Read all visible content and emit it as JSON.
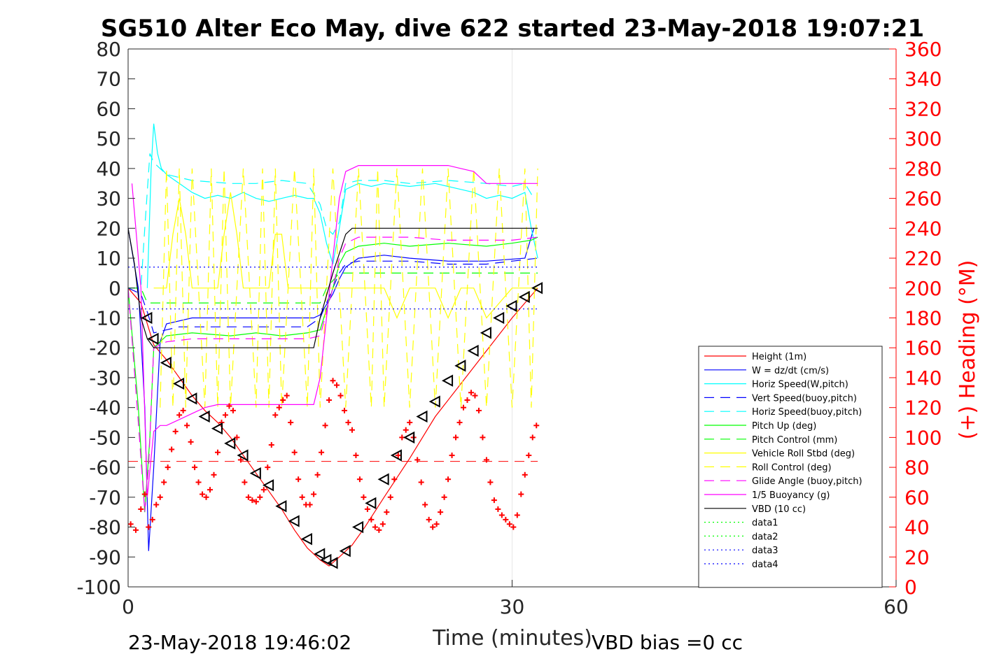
{
  "chart_data": {
    "type": "line",
    "title": "SG510 Alter Eco May, dive 622 started 23-May-2018 19:07:21",
    "xlabel": "Time (minutes)",
    "ylabel_right": "(+) Heading (°M)",
    "xlim": [
      0,
      60
    ],
    "ylim_left": [
      -100,
      80
    ],
    "ylim_right": [
      0,
      360
    ],
    "x_ticks": [
      "0",
      "30",
      "60"
    ],
    "y_ticks_left": [
      "80",
      "70",
      "60",
      "50",
      "40",
      "30",
      "20",
      "10",
      "0",
      "-10",
      "-20",
      "-30",
      "-40",
      "-50",
      "-60",
      "-70",
      "-80",
      "-90",
      "-100"
    ],
    "y_ticks_right": [
      "360",
      "340",
      "320",
      "300",
      "280",
      "260",
      "240",
      "220",
      "200",
      "180",
      "160",
      "140",
      "120",
      "100",
      "80",
      "60",
      "40",
      "20",
      "0"
    ],
    "grid": "x-only",
    "legend_location": "bottom-right",
    "footer_left": "23-May-2018 19:46:02",
    "footer_right": "VBD bias =0 cc",
    "colors": {
      "height": "#ff0000",
      "w": "#0000ff",
      "horiz": "#00ffff",
      "pitch": "#00ff00",
      "roll": "#ffff00",
      "glide": "#ff00ff",
      "buoy": "#ff00ff",
      "vbd": "#000000",
      "heading": "#ff0000",
      "axis": "#262626"
    },
    "series": [
      {
        "name": "Height (1m)",
        "style": "solid",
        "color": "#ff0000",
        "x": [
          0,
          1,
          1.5,
          2,
          3,
          4,
          5,
          6,
          7,
          8,
          9,
          10,
          11,
          12,
          13,
          14,
          15,
          15.7,
          16.5,
          17.5,
          18.5,
          20,
          22,
          24,
          26,
          28,
          30,
          31,
          32
        ],
        "values": [
          0,
          -5,
          -12,
          -19,
          -24,
          -30,
          -36,
          -41,
          -45,
          -50,
          -56,
          -62,
          -68,
          -74,
          -81,
          -87,
          -91,
          -93,
          -90,
          -86,
          -80,
          -70,
          -57,
          -43,
          -32,
          -21,
          -10,
          -5,
          0
        ]
      },
      {
        "name": "W = dz/dt (cm/s)",
        "style": "solid",
        "color": "#0000ff",
        "x": [
          0,
          0.8,
          1.3,
          1.6,
          2,
          2.5,
          3,
          5,
          8,
          11,
          13,
          14.5,
          15,
          16,
          16.5,
          17,
          18,
          20,
          22,
          25,
          28,
          31,
          31.7
        ],
        "values": [
          20,
          0,
          -40,
          -88,
          -60,
          -18,
          -12,
          -10,
          -10,
          -10,
          -10,
          -10,
          -9,
          -2,
          3,
          7,
          10,
          11,
          10,
          9,
          9,
          10,
          20
        ]
      },
      {
        "name": "Horiz Speed(W,pitch)",
        "style": "solid",
        "color": "#00ffff",
        "x": [
          1.5,
          1.8,
          2,
          2.3,
          2.6,
          3,
          4,
          5,
          6,
          7,
          8,
          9,
          10,
          11,
          12,
          13,
          14,
          14.5,
          15,
          15.5,
          16,
          16.5,
          17,
          18,
          19,
          20,
          22,
          24,
          26,
          27,
          28,
          29,
          30,
          31,
          31.5,
          32
        ],
        "values": [
          0,
          40,
          55,
          45,
          40,
          38,
          35,
          32,
          30,
          31,
          30,
          32,
          30,
          29,
          30,
          31,
          30,
          30,
          25,
          15,
          8,
          20,
          33,
          35,
          34,
          35,
          34,
          35,
          33,
          32,
          30,
          31,
          30,
          32,
          20,
          10
        ]
      },
      {
        "name": "Vert Speed(buoy,pitch)",
        "style": "dashed",
        "color": "#0000ff",
        "x": [
          0,
          1,
          1.5,
          2,
          3,
          4,
          6,
          8,
          10,
          12,
          14,
          15,
          16,
          16.5,
          17,
          18,
          20,
          22,
          25,
          28,
          30,
          32
        ],
        "values": [
          0,
          -2,
          -8,
          -15,
          -14,
          -13,
          -13,
          -13,
          -13,
          -13,
          -13,
          -10,
          0,
          5,
          8,
          9,
          9,
          9,
          8,
          8,
          9,
          10
        ]
      },
      {
        "name": "Horiz Speed(buoy,pitch)",
        "style": "dashed",
        "color": "#00ffff",
        "x": [
          0,
          1,
          1.3,
          1.7,
          2,
          2.5,
          3,
          5,
          8,
          10,
          12,
          14,
          15,
          15.5,
          16,
          16.5,
          17,
          18,
          20,
          22,
          25,
          28,
          30,
          31,
          31.7
        ],
        "values": [
          0,
          0,
          20,
          45,
          42,
          40,
          38,
          36,
          35,
          35,
          36,
          35,
          28,
          20,
          18,
          22,
          35,
          36,
          36,
          35,
          36,
          35,
          34,
          35,
          30
        ]
      },
      {
        "name": "Pitch Up (deg)",
        "style": "solid",
        "color": "#00ff00",
        "x": [
          0,
          0.8,
          1.3,
          1.7,
          2,
          3,
          5,
          8,
          10,
          12,
          14,
          15,
          16,
          16.5,
          17,
          18,
          20,
          22,
          25,
          28,
          30,
          31.5,
          32
        ],
        "values": [
          0,
          -40,
          -75,
          -50,
          -20,
          -16,
          -15,
          -16,
          -15,
          -16,
          -15,
          -14,
          0,
          8,
          12,
          14,
          15,
          14,
          15,
          14,
          15,
          16,
          17
        ]
      },
      {
        "name": "Pitch Control (mm)",
        "style": "dashed",
        "color": "#00ff00",
        "x": [
          0,
          1,
          1.5,
          2,
          5,
          10,
          14.5,
          15,
          15.5,
          16.5,
          17,
          20,
          25,
          30,
          32
        ],
        "values": [
          0,
          0,
          -5,
          -5,
          -5,
          -5,
          -5,
          -5,
          0,
          5,
          5,
          5,
          5,
          5,
          5
        ]
      },
      {
        "name": "Vehicle Roll Stbd (deg)",
        "style": "solid",
        "color": "#ffff00",
        "x": [
          2,
          3,
          3.5,
          4,
          4.5,
          5,
          6,
          7,
          7.5,
          8,
          8.5,
          9,
          10,
          11,
          11.5,
          12,
          12.5,
          13,
          14,
          15,
          16,
          18,
          20,
          21,
          22,
          24,
          25,
          26,
          27,
          28,
          30,
          31,
          32
        ],
        "values": [
          0,
          0,
          18,
          30,
          18,
          0,
          0,
          0,
          18,
          32,
          18,
          0,
          0,
          0,
          18,
          18,
          0,
          0,
          0,
          0,
          0,
          0,
          0,
          -10,
          0,
          0,
          -10,
          0,
          0,
          -10,
          0,
          0,
          0
        ]
      },
      {
        "name": "Roll Control (deg)",
        "style": "dashed",
        "color": "#ffff00",
        "x": [
          2.5,
          3,
          3.5,
          4,
          4.5,
          5,
          6,
          6.5,
          7,
          7.5,
          8,
          9,
          10,
          10.5,
          11,
          11.5,
          12,
          13,
          14,
          14.5,
          15,
          16,
          17,
          18,
          19,
          19.5,
          20,
          21,
          22,
          23,
          24,
          25,
          26,
          27,
          28,
          29,
          30,
          31,
          31.5,
          32
        ],
        "values": [
          -40,
          40,
          -40,
          40,
          -40,
          40,
          -40,
          40,
          -40,
          40,
          -40,
          40,
          -40,
          40,
          -40,
          40,
          -40,
          40,
          -40,
          40,
          -40,
          40,
          -40,
          40,
          -40,
          40,
          -40,
          40,
          -40,
          40,
          -40,
          40,
          -40,
          40,
          -40,
          40,
          -40,
          40,
          -40,
          40
        ]
      },
      {
        "name": "Glide Angle (buoy,pitch)",
        "style": "dashed",
        "color": "#ff00ff",
        "x": [
          0,
          0.8,
          1.3,
          1.6,
          2,
          3,
          5,
          8,
          10,
          12,
          14,
          15,
          16,
          16.5,
          17,
          18,
          20,
          22,
          25,
          28,
          30,
          32
        ],
        "values": [
          0,
          -45,
          -75,
          -60,
          -20,
          -18,
          -17,
          -17,
          -17,
          -17,
          -17,
          -16,
          0,
          10,
          15,
          17,
          17,
          17,
          16,
          16,
          16,
          17
        ]
      },
      {
        "name": "1/5 Buoyancy (g)",
        "style": "solid",
        "color": "#ff00ff",
        "x": [
          0.3,
          1,
          1.5,
          2,
          2.5,
          3,
          4,
          5,
          6,
          7,
          8,
          10,
          12,
          14,
          14.5,
          15,
          15.5,
          16,
          16.5,
          17,
          18,
          20,
          22,
          24,
          25,
          26,
          27,
          28,
          30,
          32
        ],
        "values": [
          35,
          0,
          -70,
          -48,
          -46,
          -46,
          -44,
          -42,
          -40,
          -39,
          -39,
          -39,
          -39,
          -39,
          -39,
          -30,
          -10,
          10,
          30,
          39,
          41,
          41,
          41,
          41,
          41,
          40,
          39,
          35,
          35,
          35
        ]
      },
      {
        "name": "VBD (10 cc)",
        "style": "solid",
        "color": "#000000",
        "x": [
          0,
          0.5,
          1,
          1.5,
          2,
          3,
          6,
          10,
          14,
          14.5,
          15,
          16,
          17,
          17.5,
          18,
          22,
          26,
          30,
          31.5,
          32
        ],
        "values": [
          20,
          8,
          -10,
          -17,
          -20,
          -20,
          -20,
          -20,
          -20,
          -20,
          -10,
          5,
          18,
          20,
          20,
          20,
          20,
          20,
          20,
          20
        ]
      },
      {
        "name": "data1",
        "style": "dotted",
        "color": "#00ff00",
        "x": [],
        "values": []
      },
      {
        "name": "data2",
        "style": "dotted",
        "color": "#00ff00",
        "x": [],
        "values": []
      },
      {
        "name": "data3",
        "style": "dotted",
        "color": "#0000ff",
        "x": [
          0,
          32
        ],
        "values": [
          7,
          7
        ]
      },
      {
        "name": "data4",
        "style": "dotted",
        "color": "#0000ff",
        "x": [
          0,
          32
        ],
        "values": [
          -7,
          -7
        ]
      }
    ],
    "reference_line": {
      "color": "#ff0000",
      "style": "dashed",
      "x": [
        0,
        32
      ],
      "value": -58
    },
    "heading_points": {
      "axis": "right",
      "marker": "+",
      "color": "#ff0000",
      "x": [
        0.2,
        0.6,
        1,
        1.3,
        1.6,
        1.9,
        2.2,
        2.5,
        2.8,
        3.1,
        3.4,
        3.7,
        4,
        4.3,
        4.6,
        4.9,
        5.2,
        5.5,
        5.8,
        6.1,
        6.4,
        6.7,
        7,
        7.3,
        7.6,
        7.9,
        8.2,
        8.5,
        8.8,
        9.1,
        9.4,
        9.7,
        10,
        10.3,
        10.6,
        10.9,
        11.2,
        11.5,
        11.8,
        12.1,
        12.4,
        12.7,
        13,
        13.3,
        13.6,
        13.9,
        14.2,
        14.5,
        14.8,
        15.1,
        15.4,
        15.7,
        16,
        16.3,
        16.6,
        16.9,
        17.2,
        17.5,
        17.8,
        18.1,
        18.4,
        18.7,
        19,
        19.3,
        19.6,
        19.9,
        20.2,
        20.5,
        20.8,
        21.1,
        21.4,
        21.7,
        22,
        22.3,
        22.6,
        22.9,
        23.2,
        23.5,
        23.8,
        24.1,
        24.4,
        24.7,
        25,
        25.3,
        25.6,
        25.9,
        26.2,
        26.5,
        26.8,
        27.1,
        27.4,
        27.7,
        28,
        28.3,
        28.6,
        28.9,
        29.2,
        29.5,
        29.8,
        30.1,
        30.4,
        30.7,
        31,
        31.3,
        31.6,
        31.9
      ],
      "values": [
        42,
        38,
        52,
        62,
        40,
        45,
        55,
        60,
        70,
        80,
        92,
        104,
        115,
        118,
        108,
        97,
        80,
        70,
        62,
        60,
        65,
        75,
        90,
        110,
        115,
        121,
        118,
        100,
        85,
        70,
        60,
        58,
        57,
        60,
        65,
        80,
        95,
        115,
        120,
        125,
        128,
        110,
        90,
        72,
        60,
        55,
        55,
        62,
        75,
        90,
        108,
        125,
        138,
        135,
        128,
        118,
        110,
        105,
        88,
        72,
        60,
        52,
        45,
        40,
        38,
        42,
        50,
        60,
        72,
        88,
        100,
        105,
        110,
        100,
        85,
        70,
        55,
        45,
        40,
        42,
        50,
        60,
        72,
        88,
        100,
        110,
        120,
        125,
        130,
        128,
        118,
        100,
        85,
        70,
        58,
        52,
        48,
        45,
        42,
        40,
        48,
        62,
        75,
        88,
        100,
        108
      ]
    },
    "triangle_markers": {
      "color": "#000000",
      "x": [
        1.5,
        2,
        3,
        4,
        5,
        6,
        7,
        8,
        9,
        10,
        11,
        12,
        13,
        14,
        15,
        15.5,
        16,
        17,
        18,
        19,
        20,
        21,
        22,
        23,
        24,
        25,
        26,
        27,
        28,
        29,
        30,
        31,
        32
      ],
      "values": [
        -10,
        -17,
        -25,
        -32,
        -37,
        -43,
        -47,
        -52,
        -56,
        -62,
        -66,
        -73,
        -78,
        -84,
        -89,
        -91,
        -92,
        -88,
        -80,
        -72,
        -64,
        -56,
        -50,
        -43,
        -38,
        -31,
        -26,
        -21,
        -15,
        -10,
        -6,
        -3,
        0
      ]
    }
  }
}
